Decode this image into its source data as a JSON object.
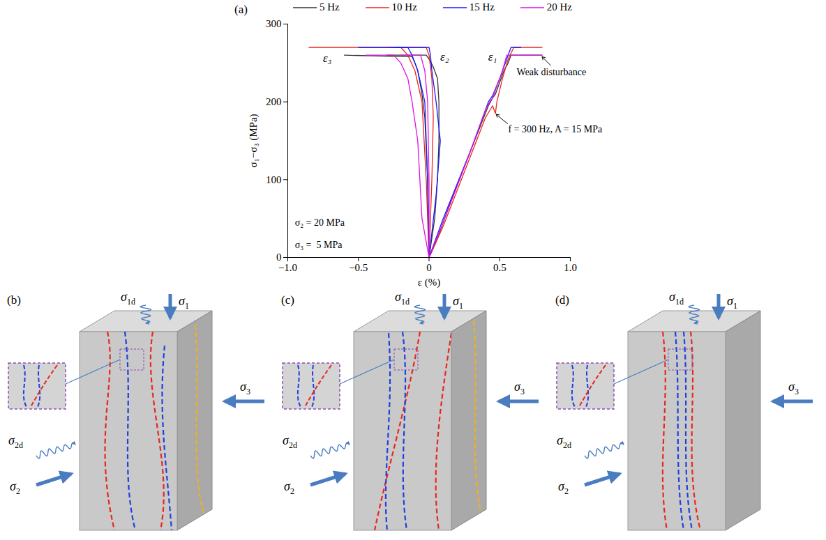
{
  "chart_data": {
    "type": "line",
    "panel_label": "(a)",
    "x_label": "ε (%)",
    "y_label": "σ₁−σ₃ (MPa)",
    "xlim": [
      -1.0,
      1.0
    ],
    "ylim": [
      0,
      300
    ],
    "xticks": [
      {
        "value": -1.0,
        "label": "−1.0"
      },
      {
        "value": -0.5,
        "label": "−0.5"
      },
      0,
      {
        "value": 0.5,
        "label": "0.5"
      },
      {
        "value": 1.0,
        "label": "1.0"
      }
    ],
    "yticks": [
      0,
      100,
      200,
      300
    ],
    "legend": "top",
    "series": [
      {
        "name": "5 Hz",
        "color": "#333333",
        "curves": [
          {
            "x": [
              0,
              0.05,
              0.15,
              0.3,
              0.42,
              0.45,
              0.47,
              0.5,
              0.53,
              0.56,
              0.58,
              0.8
            ],
            "values": [
              0,
              20,
              70,
              140,
              195,
              205,
              210,
              225,
              240,
              250,
              260,
              260
            ]
          },
          {
            "x": [
              0,
              0.04,
              0.06,
              0.07,
              0.07,
              0.06,
              0.03,
              0,
              -0.02,
              -0.3
            ],
            "values": [
              0,
              50,
              100,
              150,
              200,
              230,
              245,
              255,
              260,
              260
            ]
          },
          {
            "x": [
              0,
              -0.01,
              -0.03,
              -0.05,
              -0.08,
              -0.1,
              -0.12,
              -0.6
            ],
            "values": [
              0,
              100,
              180,
              210,
              240,
              250,
              258,
              260
            ]
          }
        ]
      },
      {
        "name": "10 Hz",
        "color": "#e8281e",
        "curves": [
          {
            "x": [
              0,
              0.1,
              0.25,
              0.4,
              0.45,
              0.47,
              0.48,
              0.52,
              0.56,
              0.6,
              0.8
            ],
            "values": [
              0,
              40,
              110,
              180,
              195,
              185,
              200,
              230,
              255,
              270,
              270
            ]
          },
          {
            "x": [
              0,
              0.02,
              0.03,
              0.02,
              0,
              -0.02,
              -0.3
            ],
            "values": [
              0,
              100,
              180,
              230,
              260,
              270,
              270
            ]
          },
          {
            "x": [
              0,
              -0.02,
              -0.05,
              -0.1,
              -0.15,
              -0.2,
              -0.85
            ],
            "values": [
              0,
              100,
              200,
              240,
              260,
              270,
              270
            ]
          }
        ]
      },
      {
        "name": "15 Hz",
        "color": "#1a1aff",
        "curves": [
          {
            "x": [
              0,
              0.1,
              0.3,
              0.42,
              0.45,
              0.5,
              0.55,
              0.58,
              0.65
            ],
            "values": [
              0,
              50,
              140,
              200,
              208,
              230,
              255,
              270,
              270
            ]
          },
          {
            "x": [
              0,
              0.05,
              0.08,
              0.05,
              0.02,
              0.01,
              0,
              -0.25
            ],
            "values": [
              0,
              80,
              150,
              200,
              240,
              260,
              270,
              270
            ]
          },
          {
            "x": [
              0,
              -0.01,
              -0.03,
              -0.08,
              -0.12,
              -0.15,
              -0.5
            ],
            "values": [
              0,
              100,
              200,
              240,
              260,
              270,
              270
            ]
          }
        ]
      },
      {
        "name": "20 Hz",
        "color": "#e010e0",
        "curves": [
          {
            "x": [
              0,
              0.1,
              0.28,
              0.4,
              0.43,
              0.45,
              0.48,
              0.52,
              0.55,
              0.8
            ],
            "values": [
              0,
              45,
              130,
              190,
              200,
              205,
              220,
              240,
              260,
              260
            ]
          },
          {
            "x": [
              0,
              0,
              -0.01,
              -0.03,
              -0.06,
              -0.2
            ],
            "values": [
              0,
              100,
              200,
              240,
              260,
              260
            ]
          },
          {
            "x": [
              0,
              -0.05,
              -0.08,
              -0.12,
              -0.15,
              -0.2,
              -0.25,
              -0.45
            ],
            "values": [
              0,
              50,
              150,
              200,
              230,
              250,
              260,
              260
            ]
          }
        ]
      }
    ],
    "strain_labels": [
      {
        "text": "ε₃",
        "x": -0.72,
        "y": 256
      },
      {
        "text": "ε₂",
        "x": 0.11,
        "y": 258
      },
      {
        "text": "ε₁",
        "x": 0.45,
        "y": 258
      }
    ],
    "annotations": [
      {
        "text": "σ₂ = 20 MPa",
        "x": -0.95,
        "y": 45
      },
      {
        "text": "σ₃ =  5 MPa",
        "x": -0.95,
        "y": 16
      },
      {
        "text": "Weak disturbance",
        "x": 0.62,
        "y": 238,
        "arrow": [
          [
            0.86,
            247
          ],
          [
            0.8,
            258
          ]
        ]
      },
      {
        "text": "f = 300 Hz, A = 15 MPa",
        "x": 0.56,
        "y": 165,
        "arrow": [
          [
            0.555,
            172
          ],
          [
            0.475,
            184
          ]
        ]
      }
    ]
  },
  "specimens": [
    {
      "label": "(b)",
      "loads": [
        "σ1d",
        "σ1",
        "σ2d",
        "σ2",
        "σ3"
      ]
    },
    {
      "label": "(c)",
      "loads": [
        "σ1d",
        "σ1",
        "σ2d",
        "σ2",
        "σ3"
      ]
    },
    {
      "label": "(d)",
      "loads": [
        "σ1d",
        "σ1",
        "σ2d",
        "σ2",
        "σ3"
      ]
    }
  ]
}
